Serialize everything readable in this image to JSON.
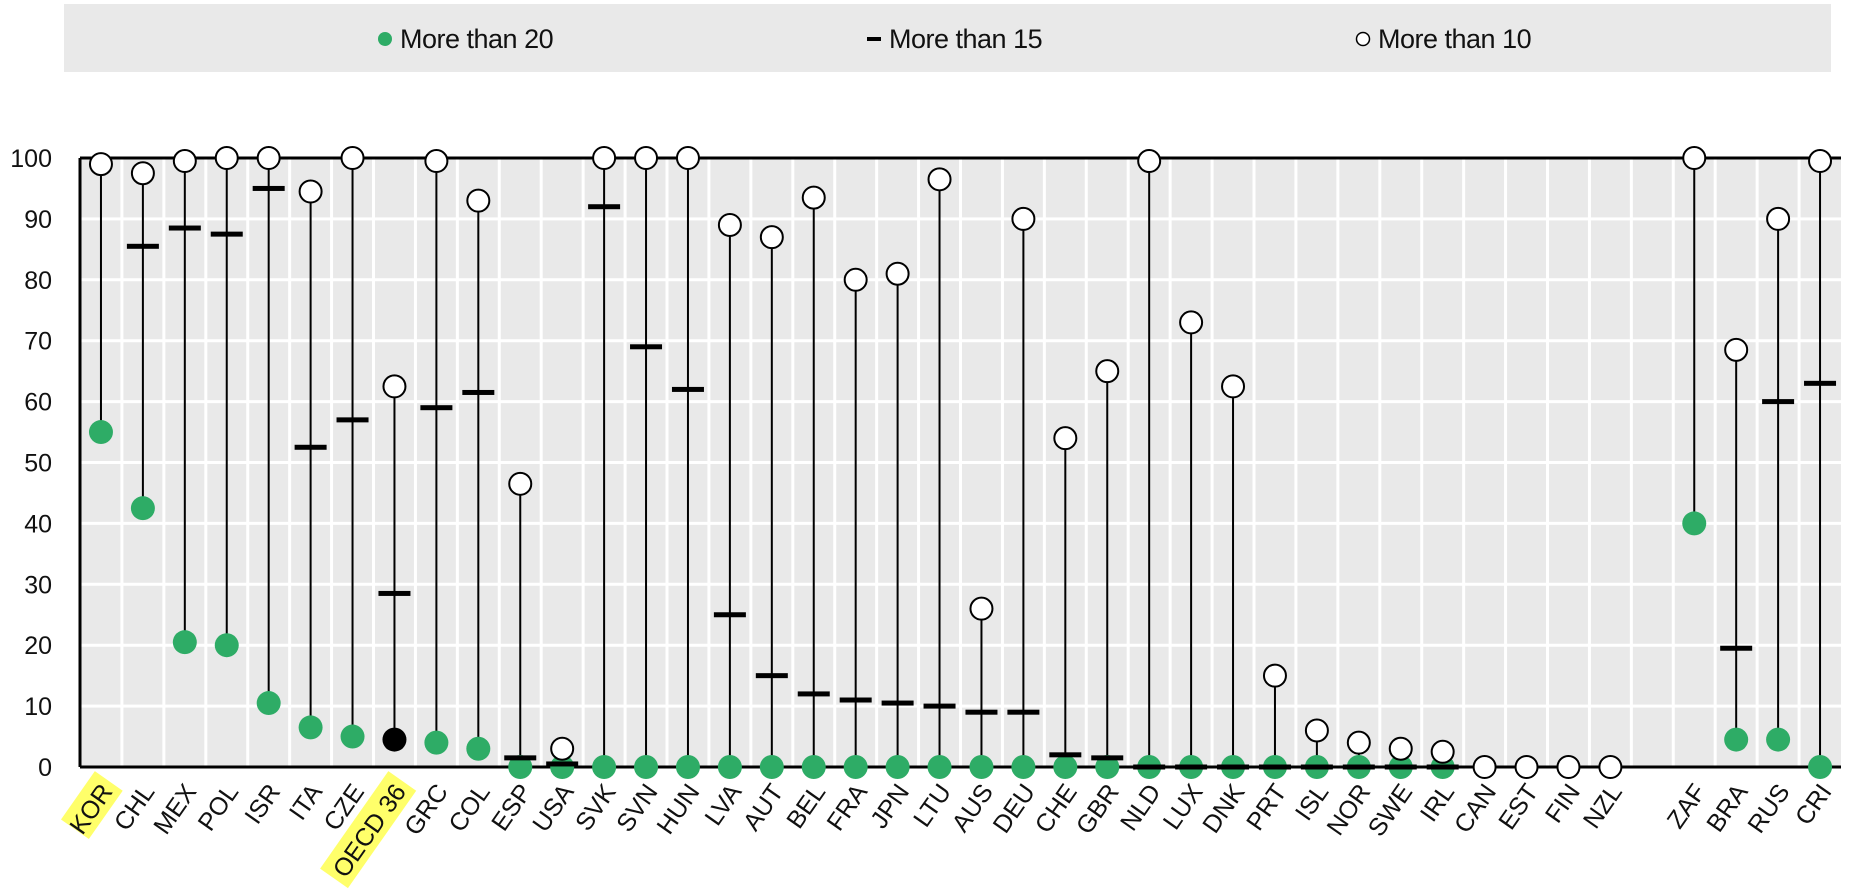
{
  "legend": [
    {
      "label": "More than 20",
      "marker": "filled-circle"
    },
    {
      "label": "More than 15",
      "marker": "dash"
    },
    {
      "label": "More than 10",
      "marker": "open-circle"
    }
  ],
  "colors": {
    "green": "#2eac66",
    "highlight": "#ffff6a",
    "plot_bg": "#e9e9e9",
    "grid": "#ffffff",
    "line": "#000000"
  },
  "chart_data": {
    "type": "dot-range",
    "ylim": [
      0,
      100
    ],
    "yticks": [
      0,
      10,
      20,
      30,
      40,
      50,
      60,
      70,
      80,
      90,
      100
    ],
    "grid": true,
    "legend_position": "top",
    "highlighted": [
      "KOR",
      "OECD 36"
    ],
    "categories": [
      "KOR",
      "CHL",
      "MEX",
      "POL",
      "ISR",
      "ITA",
      "CZE",
      "OECD 36",
      "GRC",
      "COL",
      "ESP",
      "USA",
      "SVK",
      "SVN",
      "HUN",
      "LVA",
      "AUT",
      "BEL",
      "FRA",
      "JPN",
      "LTU",
      "AUS",
      "DEU",
      "CHE",
      "GBR",
      "NLD",
      "LUX",
      "DNK",
      "PRT",
      "ISL",
      "NOR",
      "SWE",
      "IRL",
      "CAN",
      "EST",
      "FIN",
      "NZL",
      "",
      "ZAF",
      "BRA",
      "RUS",
      "CRI"
    ],
    "series": [
      {
        "name": "More than 20",
        "values": [
          55,
          42.5,
          20.5,
          20,
          10.5,
          6.5,
          5,
          4.5,
          4,
          3,
          0,
          0,
          0,
          0,
          0,
          0,
          0,
          0,
          0,
          0,
          0,
          0,
          0,
          0,
          0,
          0,
          0,
          0,
          0,
          0,
          0,
          0,
          0,
          null,
          null,
          null,
          null,
          null,
          40,
          4.5,
          4.5,
          0
        ]
      },
      {
        "name": "More than 15",
        "values": [
          null,
          85.5,
          88.5,
          87.5,
          95,
          52.5,
          57,
          28.5,
          59,
          61.5,
          1.5,
          0.5,
          92,
          69,
          62,
          25,
          15,
          12,
          11,
          10.5,
          10,
          9,
          9,
          2,
          1.5,
          0,
          0,
          0,
          0,
          0,
          0,
          0,
          0,
          null,
          null,
          null,
          null,
          null,
          null,
          19.5,
          60,
          63
        ]
      },
      {
        "name": "More than 10",
        "values": [
          99,
          97.5,
          99.5,
          100,
          100,
          94.5,
          100,
          62.5,
          99.5,
          93,
          46.5,
          3,
          100,
          100,
          100,
          89,
          87,
          93.5,
          80,
          81,
          96.5,
          26,
          90,
          54,
          65,
          99.5,
          73,
          62.5,
          15,
          6,
          4,
          3,
          2.5,
          0,
          0,
          0,
          0,
          null,
          100,
          68.5,
          90,
          99.5
        ]
      }
    ]
  }
}
